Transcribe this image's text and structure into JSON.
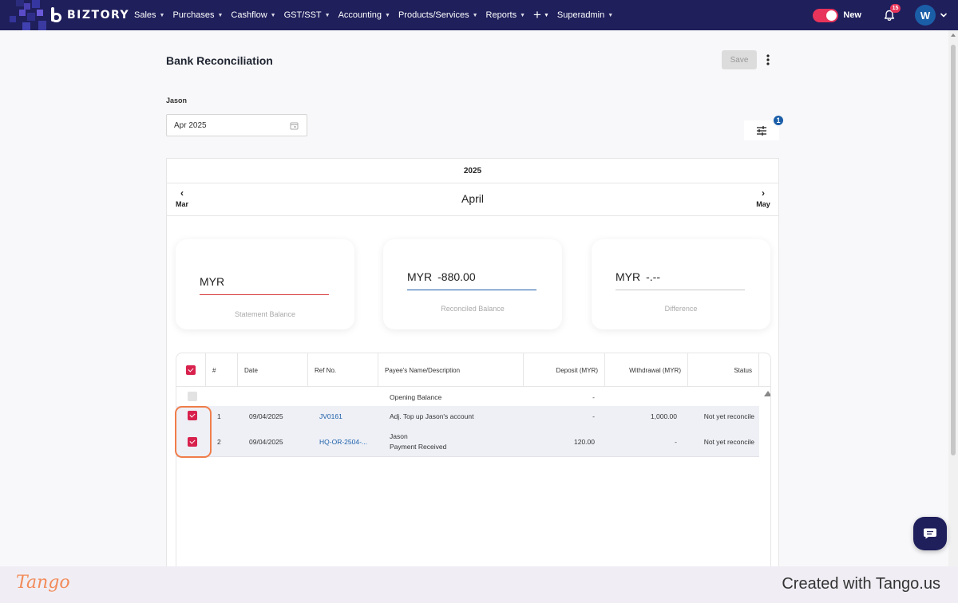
{
  "nav": {
    "brand": "BIZTORY",
    "menu": [
      {
        "label": "Sales"
      },
      {
        "label": "Purchases"
      },
      {
        "label": "Cashflow"
      },
      {
        "label": "GST/SST"
      },
      {
        "label": "Accounting"
      },
      {
        "label": "Products/Services"
      },
      {
        "label": "Reports"
      }
    ],
    "superadmin": "Superadmin",
    "new_label": "New",
    "notification_count": "15",
    "avatar_initial": "W"
  },
  "page": {
    "title": "Bank Reconciliation",
    "save_label": "Save",
    "account_name": "Jason",
    "period": "Apr 2025",
    "filter_count": "1"
  },
  "calendar": {
    "year": "2025",
    "month": "April",
    "prev": "Mar",
    "next": "May"
  },
  "summary": {
    "statement": {
      "currency": "MYR",
      "value": "",
      "caption": "Statement Balance"
    },
    "reconciled": {
      "currency": "MYR",
      "value": "-880.00",
      "caption": "Reconciled Balance"
    },
    "difference": {
      "currency": "MYR",
      "value": "-.--",
      "caption": "Difference"
    }
  },
  "table": {
    "headers": {
      "num": "#",
      "date": "Date",
      "ref": "Ref No.",
      "payee": "Payee's Name/Description",
      "deposit": "Deposit (MYR)",
      "withdrawal": "Withdrawal (MYR)",
      "status": "Status"
    },
    "opening": {
      "label": "Opening Balance",
      "deposit": "-"
    },
    "rows": [
      {
        "num": "1",
        "date": "09/04/2025",
        "ref": "JV0161",
        "payee": "Adj. Top up Jason's account",
        "payee2": "",
        "deposit": "-",
        "withdrawal": "1,000.00",
        "status": "Not yet reconcile"
      },
      {
        "num": "2",
        "date": "09/04/2025",
        "ref": "HQ-OR-2504-...",
        "payee": "Jason",
        "payee2": "Payment Received",
        "deposit": "120.00",
        "withdrawal": "-",
        "status": "Not yet reconcile"
      }
    ]
  },
  "footer": {
    "logo": "Tango",
    "created": "Created with Tango.us"
  }
}
